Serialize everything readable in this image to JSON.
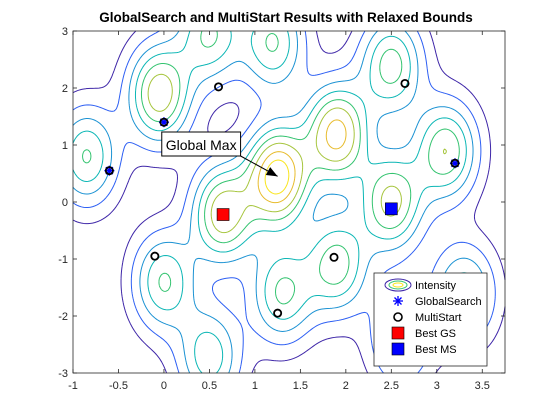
{
  "chart_data": {
    "type": "contour",
    "title": "GlobalSearch and MultiStart Results with Relaxed Bounds",
    "xlabel": "",
    "ylabel": "",
    "xlim": [
      -1,
      3.75
    ],
    "ylim": [
      -3,
      3
    ],
    "x_ticks": [
      "-1",
      "-0.5",
      "0",
      "0.5",
      "1",
      "1.5",
      "2",
      "2.5",
      "3",
      "3.5"
    ],
    "y_ticks": [
      "-3",
      "-2",
      "-1",
      "0",
      "1",
      "2",
      "3"
    ],
    "grid": false,
    "legend_placement": "bottom-right",
    "contour_peaks": [
      {
        "x": -0.85,
        "y": 0.8,
        "amp": 0.55
      },
      {
        "x": -0.05,
        "y": 1.9,
        "amp": 0.75
      },
      {
        "x": 0.5,
        "y": 2.95,
        "amp": 0.55
      },
      {
        "x": 0.65,
        "y": -0.2,
        "amp": 0.75
      },
      {
        "x": 1.25,
        "y": 0.45,
        "amp": 1.0
      },
      {
        "x": 1.2,
        "y": 2.8,
        "amp": 0.55
      },
      {
        "x": 0.0,
        "y": -1.4,
        "amp": 0.55
      },
      {
        "x": 0.5,
        "y": -2.7,
        "amp": 0.5
      },
      {
        "x": 1.9,
        "y": 1.2,
        "amp": 0.85
      },
      {
        "x": 1.3,
        "y": -1.6,
        "amp": 0.55
      },
      {
        "x": 2.5,
        "y": 2.4,
        "amp": 0.6
      },
      {
        "x": 2.5,
        "y": 0.0,
        "amp": 0.7
      },
      {
        "x": 1.9,
        "y": -1.1,
        "amp": 0.6
      },
      {
        "x": 3.1,
        "y": 0.9,
        "amp": 0.65
      },
      {
        "x": 3.3,
        "y": -1.6,
        "amp": 0.5
      },
      {
        "x": 2.6,
        "y": -2.4,
        "amp": 0.4
      }
    ],
    "series": [
      {
        "name": "Intensity",
        "kind": "contour"
      },
      {
        "name": "GlobalSearch",
        "kind": "marker",
        "marker": "asterisk",
        "color": "#0000ff",
        "points": [
          [
            -0.6,
            0.55
          ],
          [
            0.0,
            1.4
          ],
          [
            3.2,
            0.68
          ]
        ]
      },
      {
        "name": "MultiStart",
        "kind": "marker",
        "marker": "open-circle",
        "color": "#000000",
        "points": [
          [
            -0.6,
            0.55
          ],
          [
            0.0,
            1.4
          ],
          [
            0.6,
            2.02
          ],
          [
            -0.1,
            -0.95
          ],
          [
            1.25,
            -1.95
          ],
          [
            1.87,
            -0.97
          ],
          [
            2.65,
            2.08
          ],
          [
            3.2,
            0.68
          ]
        ]
      },
      {
        "name": "Best GS",
        "kind": "marker",
        "marker": "filled-square",
        "color": "#ff0000",
        "points": [
          [
            0.65,
            -0.22
          ]
        ]
      },
      {
        "name": "Best MS",
        "kind": "marker",
        "marker": "filled-square",
        "color": "#0000ff",
        "points": [
          [
            2.5,
            -0.12
          ]
        ]
      }
    ],
    "annotation": {
      "text": "Global Max",
      "box_x": 0.02,
      "box_y": 1.0,
      "arrow_to_x": 1.25,
      "arrow_to_y": 0.45
    }
  },
  "colors": {
    "contour_levels": [
      "#3e26a8",
      "#2d5ff3",
      "#1b92d3",
      "#0bb6b5",
      "#33c36f",
      "#a6c53d",
      "#e7bb2b",
      "#f9e51d"
    ],
    "axis": "#262626"
  }
}
